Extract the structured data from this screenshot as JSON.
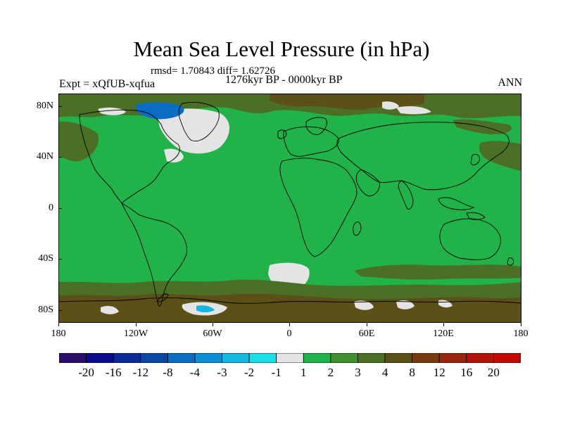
{
  "title": "Mean Sea Level Pressure (in hPa)",
  "stats": "rmsd= 1.70843 diff= 1.62726",
  "period": "1276kyr BP - 0000kyr BP",
  "experiment": "Expt = xQfUB-xqfua",
  "season": "ANN",
  "axes": {
    "lat_labels": [
      "80N",
      "40N",
      "0",
      "40S",
      "80S"
    ],
    "lon_labels": [
      "180",
      "120W",
      "60W",
      "0",
      "60E",
      "120E",
      "180"
    ]
  },
  "colorbar": {
    "labels": [
      "-20",
      "-16",
      "-12",
      "-8",
      "-4",
      "-3",
      "-2",
      "-1",
      "1",
      "2",
      "3",
      "4",
      "8",
      "12",
      "16",
      "20"
    ],
    "colors": [
      "#2a0f6a",
      "#0c0a8e",
      "#0c2a9a",
      "#0b46a6",
      "#0b6cc4",
      "#0c8fd9",
      "#14b8df",
      "#18e0e6",
      "#e4e4e4",
      "#21b24a",
      "#3f8f2e",
      "#4b6f24",
      "#5c5019",
      "#7a3a10",
      "#97260c",
      "#b31407",
      "#c40a04"
    ]
  },
  "colors": {
    "ocean_dominant": "#21b24a",
    "high_anomaly": "#4b6f24",
    "higher_anomaly": "#5c5019",
    "near_zero": "#e4e4e4",
    "low_anomaly": "#0b6cc4"
  }
}
